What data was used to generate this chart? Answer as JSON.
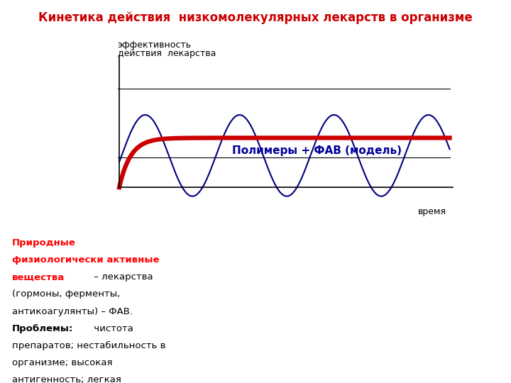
{
  "title_text": "Кинетика действия  низкомолекулярных лекарств в организме",
  "ylabel_line1": "эффективность",
  "ylabel_line2": "действия  лекарства",
  "xlabel": "время",
  "bg_color": "#ffffff",
  "title_color": "#cc0000",
  "blue_line_color": "#000080",
  "red_line_color": "#cc0000",
  "text_right_title": "Полимеры + ФАВ (модель)",
  "text_right_color": "#000099"
}
